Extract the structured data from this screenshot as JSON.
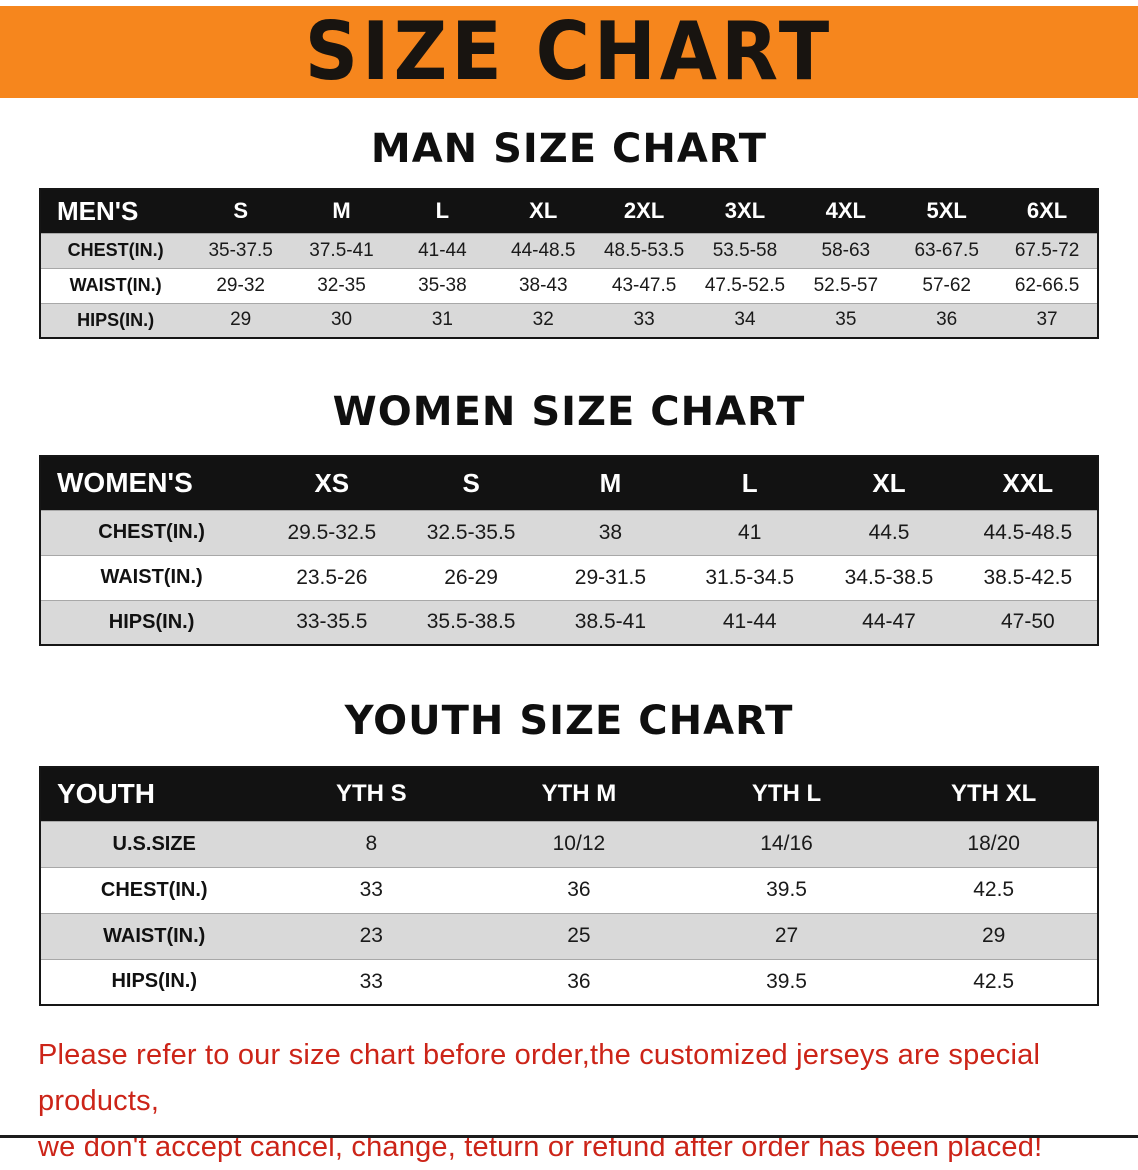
{
  "banner": {
    "title": "SIZE CHART",
    "background_color": "#f6861d",
    "text_color": "#181410"
  },
  "colors": {
    "table_header_bg": "#121212",
    "table_header_text": "#ffffff",
    "stripe_gray": "#d9d9d9",
    "disclaimer_red": "#cc2418"
  },
  "sections": [
    {
      "heading": "MAN SIZE CHART",
      "table": {
        "header": [
          "MEN'S",
          "S",
          "M",
          "L",
          "XL",
          "2XL",
          "3XL",
          "4XL",
          "5XL",
          "6XL"
        ],
        "rows": [
          [
            "CHEST(IN.)",
            "35-37.5",
            "37.5-41",
            "41-44",
            "44-48.5",
            "48.5-53.5",
            "53.5-58",
            "58-63",
            "63-67.5",
            "67.5-72"
          ],
          [
            "WAIST(IN.)",
            "29-32",
            "32-35",
            "35-38",
            "38-43",
            "43-47.5",
            "47.5-52.5",
            "52.5-57",
            "57-62",
            "62-66.5"
          ],
          [
            "HIPS(IN.)",
            "29",
            "30",
            "31",
            "32",
            "33",
            "34",
            "35",
            "36",
            "37"
          ]
        ]
      }
    },
    {
      "heading": "WOMEN SIZE CHART",
      "table": {
        "header": [
          "WOMEN'S",
          "XS",
          "S",
          "M",
          "L",
          "XL",
          "XXL"
        ],
        "rows": [
          [
            "CHEST(IN.)",
            "29.5-32.5",
            "32.5-35.5",
            "38",
            "41",
            "44.5",
            "44.5-48.5"
          ],
          [
            "WAIST(IN.)",
            "23.5-26",
            "26-29",
            "29-31.5",
            "31.5-34.5",
            "34.5-38.5",
            "38.5-42.5"
          ],
          [
            "HIPS(IN.)",
            "33-35.5",
            "35.5-38.5",
            "38.5-41",
            "41-44",
            "44-47",
            "47-50"
          ]
        ]
      }
    },
    {
      "heading": "YOUTH SIZE CHART",
      "table": {
        "header": [
          "YOUTH",
          "YTH S",
          "YTH M",
          "YTH L",
          "YTH XL"
        ],
        "rows": [
          [
            "U.S.SIZE",
            "8",
            "10/12",
            "14/16",
            "18/20"
          ],
          [
            "CHEST(IN.)",
            "33",
            "36",
            "39.5",
            "42.5"
          ],
          [
            "WAIST(IN.)",
            "23",
            "25",
            "27",
            "29"
          ],
          [
            "HIPS(IN.)",
            "33",
            "36",
            "39.5",
            "42.5"
          ]
        ]
      }
    }
  ],
  "disclaimer": {
    "line1": "Please refer to our size chart before order,the customized jerseys are special products,",
    "line2": "we don't accept cancel, change, teturn or refund after order has been placed!"
  }
}
